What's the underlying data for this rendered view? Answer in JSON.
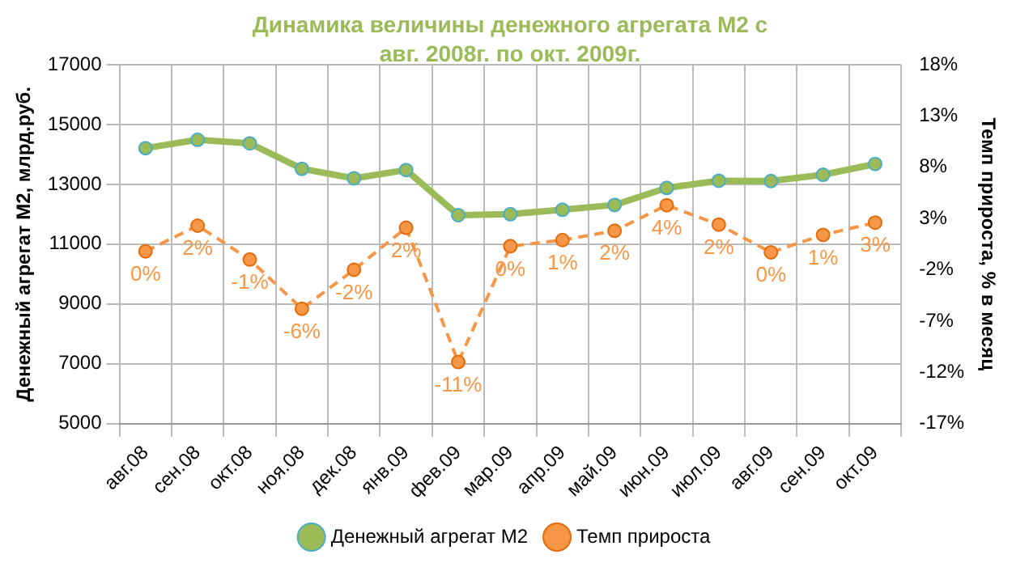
{
  "chart_data": {
    "type": "line",
    "title": "Динамика величины денежного агрегата М2 с авг. 2008г. по окт. 2009г.",
    "ylabel": "Денежный агрегат М2, млрд.руб.",
    "y2label": "Темп прироста, % в месяц",
    "categories": [
      "авг.08",
      "сен.08",
      "окт.08",
      "ноя.08",
      "дек.08",
      "янв.09",
      "фев.09",
      "мар.09",
      "апр.09",
      "май.09",
      "июн.09",
      "июл.09",
      "авг.09",
      "сен.09",
      "окт.09"
    ],
    "series": [
      {
        "name": "Денежный агрегат М2",
        "color": "#9bbb59",
        "line_style": "solid",
        "values": [
          14210,
          14490,
          14370,
          13520,
          13200,
          13480,
          11970,
          12000,
          12150,
          12310,
          12880,
          13120,
          13110,
          13320,
          13680
        ]
      },
      {
        "name": "Темп прироста",
        "color": "#f79646",
        "axis": "y2",
        "line_style": "dashed",
        "values": [
          -0.2,
          2.3,
          -1.0,
          -5.8,
          -2.0,
          2.1,
          -11.0,
          0.3,
          0.9,
          1.8,
          4.3,
          2.4,
          -0.3,
          1.4,
          2.6
        ],
        "value_labels": [
          "0%",
          "2%",
          "-1%",
          "-6%",
          "-2%",
          "2%",
          "-11%",
          "0%",
          "1%",
          "2%",
          "4%",
          "2%",
          "0%",
          "1%",
          "3%"
        ]
      }
    ],
    "ylim": [
      5000,
      17000
    ],
    "yticks": [
      5000,
      7000,
      9000,
      11000,
      13000,
      15000,
      17000
    ],
    "y2lim": [
      -17,
      18
    ],
    "y2ticks": [
      {
        "value": -17,
        "label": "-17%"
      },
      {
        "value": -12,
        "label": "-12%"
      },
      {
        "value": -7,
        "label": "-7%"
      },
      {
        "value": -2,
        "label": "-2%"
      },
      {
        "value": 3,
        "label": "3%"
      },
      {
        "value": 8,
        "label": "8%"
      },
      {
        "value": 13,
        "label": "13%"
      },
      {
        "value": 18,
        "label": "18%"
      }
    ],
    "grid": true,
    "legend": "bottom",
    "marker": "circle"
  }
}
